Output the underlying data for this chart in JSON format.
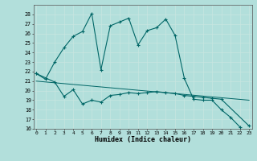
{
  "xlabel": "Humidex (Indice chaleur)",
  "background_color": "#b2dfdb",
  "grid_color": "#d4eeeb",
  "line_color": "#006666",
  "line1_x": [
    0,
    1,
    2,
    3,
    4,
    5,
    6,
    7,
    8,
    9,
    10,
    11,
    12,
    13,
    14,
    15,
    16,
    17,
    18,
    19,
    20,
    21,
    22
  ],
  "line1_y": [
    21.8,
    21.2,
    23.0,
    24.5,
    25.7,
    26.2,
    28.1,
    22.2,
    26.8,
    27.2,
    27.6,
    24.8,
    26.3,
    26.6,
    27.5,
    25.8,
    21.3,
    19.1,
    19.0,
    19.0,
    18.0,
    17.2,
    16.2
  ],
  "line2_x": [
    0,
    2,
    3,
    4,
    5,
    6,
    7,
    8,
    9,
    10,
    11,
    12,
    13,
    14,
    15,
    16,
    17,
    18,
    19,
    20,
    23
  ],
  "line2_y": [
    21.8,
    20.9,
    19.4,
    20.1,
    18.6,
    19.0,
    18.8,
    19.5,
    19.6,
    19.8,
    19.7,
    19.8,
    19.9,
    19.8,
    19.7,
    19.5,
    19.4,
    19.3,
    19.2,
    19.1,
    16.3
  ],
  "line3_x": [
    0,
    23
  ],
  "line3_y": [
    21.0,
    19.0
  ],
  "ylim": [
    16,
    29
  ],
  "xlim": [
    -0.3,
    23.3
  ],
  "yticks": [
    16,
    17,
    18,
    19,
    20,
    21,
    22,
    23,
    24,
    25,
    26,
    27,
    28
  ],
  "xticks": [
    0,
    1,
    2,
    3,
    4,
    5,
    6,
    7,
    8,
    9,
    10,
    11,
    12,
    13,
    14,
    15,
    16,
    17,
    18,
    19,
    20,
    21,
    22,
    23
  ]
}
